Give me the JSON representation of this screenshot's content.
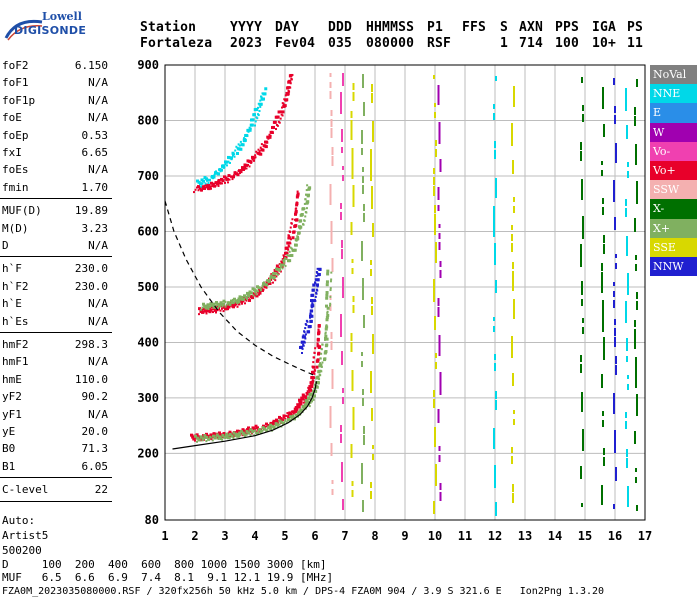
{
  "logo": {
    "line1": "Lowell",
    "line2": "DIGISONDE"
  },
  "header": {
    "labels": [
      "Station",
      "YYYY",
      "DAY",
      "DDD",
      "HHMMSS",
      "P1",
      "FFS",
      "S",
      "AXN",
      "PPS",
      "IGA",
      "PS"
    ],
    "values": [
      "Fortaleza",
      "2023",
      "Fev04",
      "035",
      "080000",
      "RSF",
      "",
      "1",
      "714",
      "100",
      "10+",
      "11"
    ]
  },
  "params_group1": [
    {
      "k": "foF2",
      "v": "6.150"
    },
    {
      "k": "foF1",
      "v": "N/A"
    },
    {
      "k": "foF1p",
      "v": "N/A"
    },
    {
      "k": "foE",
      "v": "N/A"
    },
    {
      "k": "foEp",
      "v": "0.53"
    },
    {
      "k": "fxI",
      "v": "6.65"
    },
    {
      "k": "foEs",
      "v": "N/A"
    },
    {
      "k": "fmin",
      "v": "1.70"
    }
  ],
  "params_group2": [
    {
      "k": "MUF(D)",
      "v": "19.89"
    },
    {
      "k": "M(D)",
      "v": "3.23"
    },
    {
      "k": "D",
      "v": "N/A"
    }
  ],
  "params_group3": [
    {
      "k": "h`F",
      "v": "230.0"
    },
    {
      "k": "h`F2",
      "v": "230.0"
    },
    {
      "k": "h`E",
      "v": "N/A"
    },
    {
      "k": "h`Es",
      "v": "N/A"
    }
  ],
  "params_group4": [
    {
      "k": "hmF2",
      "v": "298.3"
    },
    {
      "k": "hmF1",
      "v": "N/A"
    },
    {
      "k": "hmE",
      "v": "110.0"
    },
    {
      "k": "yF2",
      "v": "90.2"
    },
    {
      "k": "yF1",
      "v": "N/A"
    },
    {
      "k": "yE",
      "v": "20.0"
    },
    {
      "k": "B0",
      "v": "71.3"
    },
    {
      "k": "B1",
      "v": "6.05"
    }
  ],
  "params_group5": [
    {
      "k": "C-level",
      "v": "22"
    }
  ],
  "auto": {
    "line1": "Auto:",
    "line2": "Artist5",
    "line3": "500200"
  },
  "legend": [
    {
      "label": "NoVal",
      "color": "#808080"
    },
    {
      "label": "NNE",
      "color": "#00d8e8"
    },
    {
      "label": "E",
      "color": "#2a8ee8"
    },
    {
      "label": "W",
      "color": "#a000b0"
    },
    {
      "label": "Vo-",
      "color": "#f040b0"
    },
    {
      "label": "Vo+",
      "color": "#e8002a"
    },
    {
      "label": "SSW",
      "color": "#f4b0b0"
    },
    {
      "label": "X-",
      "color": "#007000"
    },
    {
      "label": "X+",
      "color": "#80b060"
    },
    {
      "label": "SSE",
      "color": "#d8d800"
    },
    {
      "label": "NNW",
      "color": "#2020d0"
    }
  ],
  "footer": {
    "d_row": "D     100  200  400  600  800 1000 1500 3000 [km]",
    "muf_row": "MUF   6.5  6.6  6.9  7.4  8.1  9.1 12.1 19.9 [MHz]",
    "file_row": "FZA0M_2023035080000.RSF / 320fx256h 50 kHz 5.0 km / DPS-4 FZA0M 904 / 3.9 S 321.6 E   Ion2Png 1.3.20"
  },
  "chart_data": {
    "type": "scatter",
    "xlim": [
      1,
      17
    ],
    "ylim": [
      80,
      900
    ],
    "x_ticks": [
      1,
      2,
      3,
      4,
      5,
      6,
      7,
      8,
      9,
      10,
      11,
      12,
      13,
      14,
      15,
      16,
      17
    ],
    "y_ticks": [
      80,
      200,
      300,
      400,
      500,
      600,
      700,
      800,
      900
    ],
    "grid": true,
    "legend_placement": "right",
    "traces": [
      {
        "name": "Vo+",
        "color": "#e8002a",
        "points": [
          [
            1.9,
            232
          ],
          [
            2.2,
            233
          ],
          [
            2.6,
            235
          ],
          [
            3.0,
            237
          ],
          [
            3.4,
            240
          ],
          [
            3.8,
            245
          ],
          [
            4.2,
            250
          ],
          [
            4.6,
            258
          ],
          [
            5.0,
            270
          ],
          [
            5.3,
            282
          ],
          [
            5.5,
            295
          ],
          [
            5.7,
            310
          ],
          [
            5.85,
            330
          ],
          [
            5.95,
            360
          ],
          [
            6.05,
            400
          ],
          [
            6.1,
            440
          ]
        ]
      },
      {
        "name": "X+",
        "color": "#80b060",
        "points": [
          [
            2.0,
            230
          ],
          [
            2.5,
            232
          ],
          [
            3.0,
            234
          ],
          [
            3.5,
            238
          ],
          [
            4.0,
            243
          ],
          [
            4.5,
            250
          ],
          [
            5.0,
            262
          ],
          [
            5.4,
            275
          ],
          [
            5.7,
            292
          ],
          [
            5.9,
            310
          ],
          [
            6.05,
            335
          ],
          [
            6.2,
            370
          ],
          [
            6.3,
            410
          ],
          [
            6.4,
            470
          ],
          [
            6.45,
            540
          ]
        ]
      },
      {
        "name": "Vo+",
        "color": "#e8002a",
        "points": [
          [
            2.1,
            460
          ],
          [
            2.5,
            462
          ],
          [
            2.9,
            466
          ],
          [
            3.3,
            472
          ],
          [
            3.7,
            482
          ],
          [
            4.1,
            495
          ],
          [
            4.5,
            515
          ],
          [
            4.8,
            540
          ],
          [
            5.0,
            565
          ],
          [
            5.15,
            595
          ],
          [
            5.3,
            630
          ],
          [
            5.4,
            680
          ]
        ]
      },
      {
        "name": "X+",
        "color": "#80b060",
        "points": [
          [
            2.2,
            468
          ],
          [
            2.6,
            470
          ],
          [
            3.0,
            474
          ],
          [
            3.4,
            480
          ],
          [
            3.8,
            490
          ],
          [
            4.2,
            505
          ],
          [
            4.6,
            525
          ],
          [
            5.0,
            550
          ],
          [
            5.3,
            580
          ],
          [
            5.5,
            615
          ],
          [
            5.65,
            650
          ],
          [
            5.75,
            690
          ]
        ]
      },
      {
        "name": "Vo+",
        "color": "#e8002a",
        "points": [
          [
            2.0,
            680
          ],
          [
            2.4,
            684
          ],
          [
            2.8,
            692
          ],
          [
            3.2,
            703
          ],
          [
            3.6,
            718
          ],
          [
            4.0,
            740
          ],
          [
            4.3,
            762
          ],
          [
            4.6,
            790
          ],
          [
            4.85,
            820
          ],
          [
            5.05,
            855
          ],
          [
            5.2,
            890
          ]
        ]
      },
      {
        "name": "NNE",
        "color": "#00d8e8",
        "points": [
          [
            2.1,
            690
          ],
          [
            2.5,
            700
          ],
          [
            2.9,
            720
          ],
          [
            3.3,
            745
          ],
          [
            3.6,
            770
          ],
          [
            3.9,
            800
          ],
          [
            4.1,
            830
          ],
          [
            4.3,
            860
          ]
        ]
      },
      {
        "name": "NNW",
        "color": "#2020d0",
        "points": [
          [
            5.5,
            390
          ],
          [
            5.65,
            420
          ],
          [
            5.8,
            450
          ],
          [
            5.9,
            480
          ],
          [
            6.0,
            510
          ],
          [
            6.1,
            540
          ]
        ]
      }
    ],
    "profile_solid": [
      [
        1.25,
        208
      ],
      [
        2.0,
        214
      ],
      [
        3.0,
        222
      ],
      [
        4.0,
        232
      ],
      [
        4.6,
        242
      ],
      [
        5.1,
        255
      ],
      [
        5.5,
        270
      ],
      [
        5.75,
        285
      ],
      [
        5.9,
        300
      ],
      [
        6.0,
        315
      ],
      [
        6.05,
        330
      ]
    ],
    "profile_dashed": [
      [
        1.0,
        655
      ],
      [
        1.3,
        600
      ],
      [
        1.7,
        550
      ],
      [
        2.2,
        500
      ],
      [
        2.8,
        455
      ],
      [
        3.4,
        420
      ],
      [
        4.0,
        395
      ],
      [
        4.6,
        375
      ],
      [
        5.1,
        362
      ],
      [
        5.5,
        352
      ],
      [
        5.8,
        345
      ],
      [
        6.0,
        340
      ]
    ],
    "vertical_lines": [
      {
        "x": 6.55,
        "color": "#f4b0b0"
      },
      {
        "x": 6.9,
        "color": "#f040b0"
      },
      {
        "x": 7.25,
        "color": "#d8d800"
      },
      {
        "x": 7.6,
        "color": "#80b060"
      },
      {
        "x": 7.9,
        "color": "#d8d800"
      },
      {
        "x": 10.0,
        "color": "#d8d800"
      },
      {
        "x": 10.15,
        "color": "#a000b0"
      },
      {
        "x": 12.0,
        "color": "#00d8e8"
      },
      {
        "x": 12.6,
        "color": "#d8d800"
      },
      {
        "x": 14.9,
        "color": "#007000"
      },
      {
        "x": 15.6,
        "color": "#007000"
      },
      {
        "x": 16.0,
        "color": "#2020d0"
      },
      {
        "x": 16.4,
        "color": "#00d8e8"
      },
      {
        "x": 16.7,
        "color": "#007000"
      }
    ]
  }
}
